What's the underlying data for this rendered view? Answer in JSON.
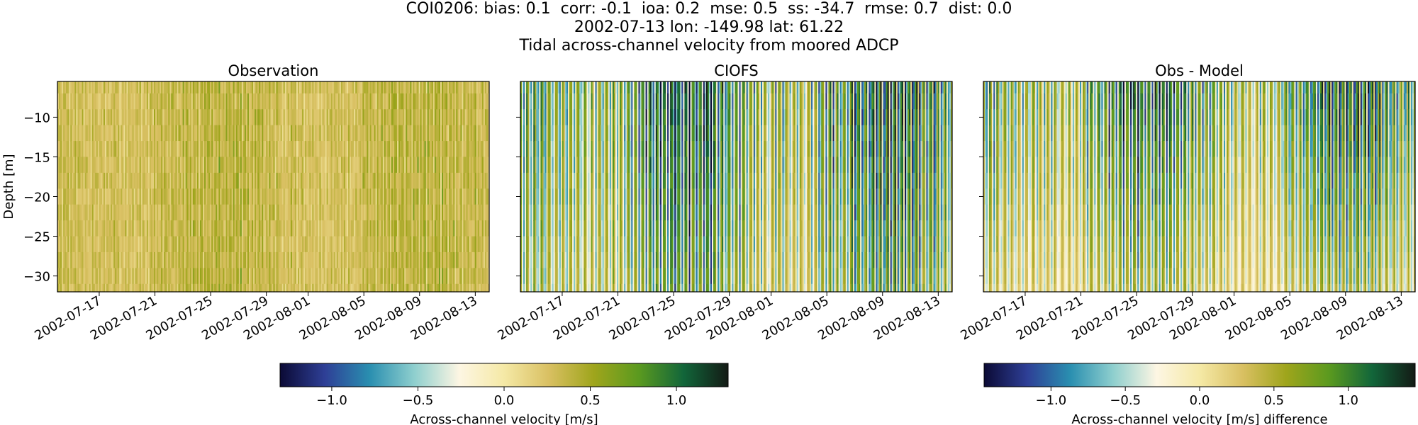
{
  "figure": {
    "title_lines": [
      "COI0206: bias: 0.1  corr: -0.1  ioa: 0.2  mse: 0.5  ss: -34.7  rmse: 0.7  dist: 0.0",
      "2002-07-13 lon: -149.98 lat: 61.22",
      "Tidal across-channel velocity from moored ADCP"
    ]
  },
  "chart_data": [
    {
      "type": "heatmap",
      "title": "Observation",
      "xlabel": "",
      "ylabel": "Depth [m]",
      "x_range": [
        "2002-07-14",
        "2002-08-14"
      ],
      "y_range": [
        -32,
        -5.5
      ],
      "x_ticks": [
        "2002-07-17",
        "2002-07-21",
        "2002-07-25",
        "2002-07-29",
        "2002-08-01",
        "2002-08-05",
        "2002-08-09",
        "2002-08-13"
      ],
      "y_ticks": [
        -10,
        -15,
        -20,
        -25,
        -30
      ],
      "colormap": "diverging blue-white-yellow-green",
      "value_range": [
        -1.3,
        1.3
      ],
      "depth_levels": [
        -6,
        -8,
        -10,
        -12,
        -14,
        -16,
        -18,
        -20,
        -22,
        -24,
        -26,
        -28,
        -30,
        -32
      ],
      "surface_amplitude_ms": 0.3,
      "bottom_amplitude_ms": 0.3
    },
    {
      "type": "heatmap",
      "title": "CIOFS",
      "xlabel": "",
      "ylabel": "",
      "x_range": [
        "2002-07-14",
        "2002-08-14"
      ],
      "y_range": [
        -32,
        -5.5
      ],
      "x_ticks": [
        "2002-07-17",
        "2002-07-21",
        "2002-07-25",
        "2002-07-29",
        "2002-08-01",
        "2002-08-05",
        "2002-08-09",
        "2002-08-13"
      ],
      "y_ticks": [
        -10,
        -15,
        -20,
        -25,
        -30
      ],
      "colormap": "diverging blue-white-yellow-green",
      "value_range": [
        -1.3,
        1.3
      ],
      "depth_levels": [
        -6,
        -8,
        -10,
        -12,
        -14,
        -16,
        -18,
        -20,
        -22,
        -24,
        -26,
        -28,
        -30,
        -32
      ],
      "surface_amplitude_ms": 1.3,
      "bottom_amplitude_ms": 0.9
    },
    {
      "type": "heatmap",
      "title": "Obs - Model",
      "xlabel": "",
      "ylabel": "",
      "x_range": [
        "2002-07-14",
        "2002-08-14"
      ],
      "y_range": [
        -32,
        -5.5
      ],
      "x_ticks": [
        "2002-07-17",
        "2002-07-21",
        "2002-07-25",
        "2002-07-29",
        "2002-08-01",
        "2002-08-05",
        "2002-08-09",
        "2002-08-13"
      ],
      "y_ticks": [
        -10,
        -15,
        -20,
        -25,
        -30
      ],
      "colormap": "diverging blue-white-yellow-green",
      "value_range": [
        -1.45,
        1.45
      ],
      "depth_levels": [
        -6,
        -8,
        -10,
        -12,
        -14,
        -16,
        -18,
        -20,
        -22,
        -24,
        -26,
        -28,
        -30,
        -32
      ],
      "surface_amplitude_ms": 1.4,
      "bottom_amplitude_ms": 0.7
    }
  ],
  "colorbars": [
    {
      "label": "Across-channel velocity [m/s]",
      "range": [
        -1.3,
        1.3
      ],
      "ticks": [
        -1.0,
        -0.5,
        0.0,
        0.5,
        1.0
      ],
      "tick_labels": [
        "−1.0",
        "−0.5",
        "0.0",
        "0.5",
        "1.0"
      ]
    },
    {
      "label": "Across-channel velocity [m/s] difference",
      "range": [
        -1.45,
        1.45
      ],
      "ticks": [
        -1.0,
        -0.5,
        0.0,
        0.5,
        1.0
      ],
      "tick_labels": [
        "−1.0",
        "−0.5",
        "0.0",
        "0.5",
        "1.0"
      ]
    }
  ],
  "colormap_stops": [
    "#0b0a35",
    "#2e3f96",
    "#2a8fb0",
    "#8fcfce",
    "#fdf6e3",
    "#f5e9a6",
    "#d9c062",
    "#9fa51c",
    "#5b9a1f",
    "#12663a",
    "#131a15"
  ],
  "y_tick_labels": [
    "−10",
    "−15",
    "−20",
    "−25",
    "−30"
  ]
}
